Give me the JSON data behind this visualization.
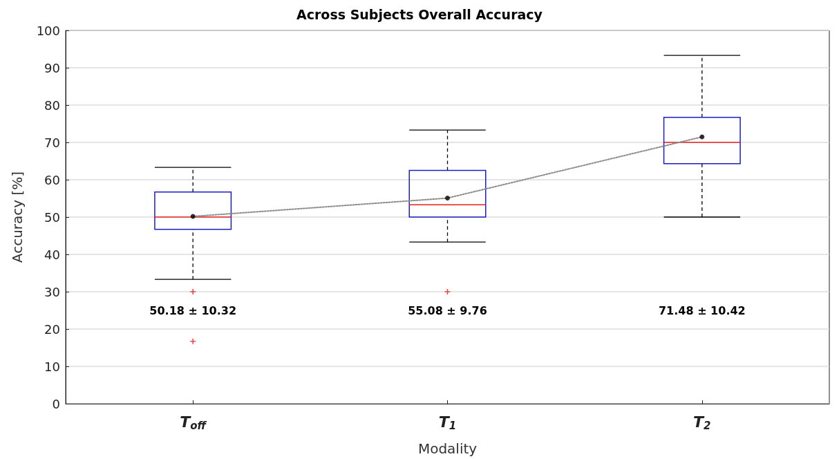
{
  "chart_data": {
    "type": "box",
    "title": "Across Subjects Overall Accuracy",
    "xlabel": "Modality",
    "ylabel": "Accuracy [%]",
    "categories": [
      "T$_{off}$",
      "T$_{1}$",
      "T$_{2}$"
    ],
    "ylim": [
      0,
      100
    ],
    "yticks": [
      0,
      10,
      20,
      30,
      40,
      50,
      60,
      70,
      80,
      90,
      100
    ],
    "grid": "y",
    "series": [
      {
        "color": "#1c1cc4",
        "boxes": [
          {
            "low": 33.3,
            "q1": 46.7,
            "median": 50,
            "q3": 56.7,
            "high": 63.3,
            "mean": 50.18,
            "outliers": [
              30,
              16.7
            ]
          },
          {
            "low": 43.3,
            "q1": 50,
            "median": 53.3,
            "q3": 62.5,
            "high": 73.3,
            "mean": 55.08,
            "outliers": [
              30
            ]
          },
          {
            "low": 50,
            "q1": 64.3,
            "median": 70,
            "q3": 76.7,
            "high": 93.3,
            "mean": 71.48
          }
        ]
      },
      {
        "type": "line",
        "color": "#8c8c8c",
        "line_style": "dotted",
        "x": [
          "T$_{off}$",
          "T$_{1}$",
          "T$_{2}$"
        ],
        "values": [
          50.18,
          55.08,
          71.48
        ]
      }
    ],
    "annotations": [
      "50.18 ± 10.32",
      "55.08 ± 9.76",
      "71.48 ± 10.42"
    ]
  }
}
